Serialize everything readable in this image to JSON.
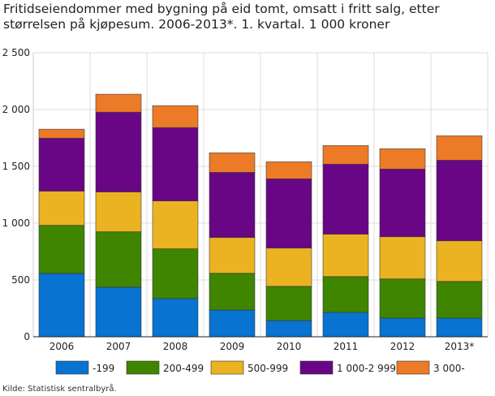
{
  "chart_data": {
    "type": "bar",
    "stacked": true,
    "title": "Fritidseiendommer med bygning på eid tomt, omsatt i fritt salg, etter størrelsen på kjøpesum. 2006-2013*. 1. kvartal. 1 000 kroner",
    "xlabel": "",
    "ylabel": "",
    "ylim": [
      0,
      2500
    ],
    "yticks": [
      0,
      500,
      1000,
      1500,
      2000,
      2500
    ],
    "ytick_labels": [
      "0",
      "500",
      "1 000",
      "1 500",
      "2 000",
      "2 500"
    ],
    "grid": true,
    "legend_position": "bottom",
    "categories": [
      "2006",
      "2007",
      "2008",
      "2009",
      "2010",
      "2011",
      "2012",
      "2013*"
    ],
    "series": [
      {
        "name": "-199",
        "color": "#0873d0",
        "values": [
          558,
          437,
          337,
          236,
          143,
          215,
          165,
          165
        ]
      },
      {
        "name": "200-499",
        "color": "#3f8500",
        "values": [
          423,
          487,
          437,
          323,
          301,
          315,
          344,
          322
        ]
      },
      {
        "name": "500-999",
        "color": "#ebb321",
        "values": [
          301,
          351,
          422,
          315,
          337,
          373,
          372,
          358
        ]
      },
      {
        "name": "1 000-2 999",
        "color": "#690686",
        "values": [
          466,
          702,
          645,
          573,
          609,
          616,
          595,
          709
        ]
      },
      {
        "name": "3 000-",
        "color": "#ec7a27",
        "values": [
          79,
          158,
          193,
          172,
          150,
          164,
          179,
          215
        ]
      }
    ]
  },
  "source": "Kilde: Statistisk sentralbyrå."
}
